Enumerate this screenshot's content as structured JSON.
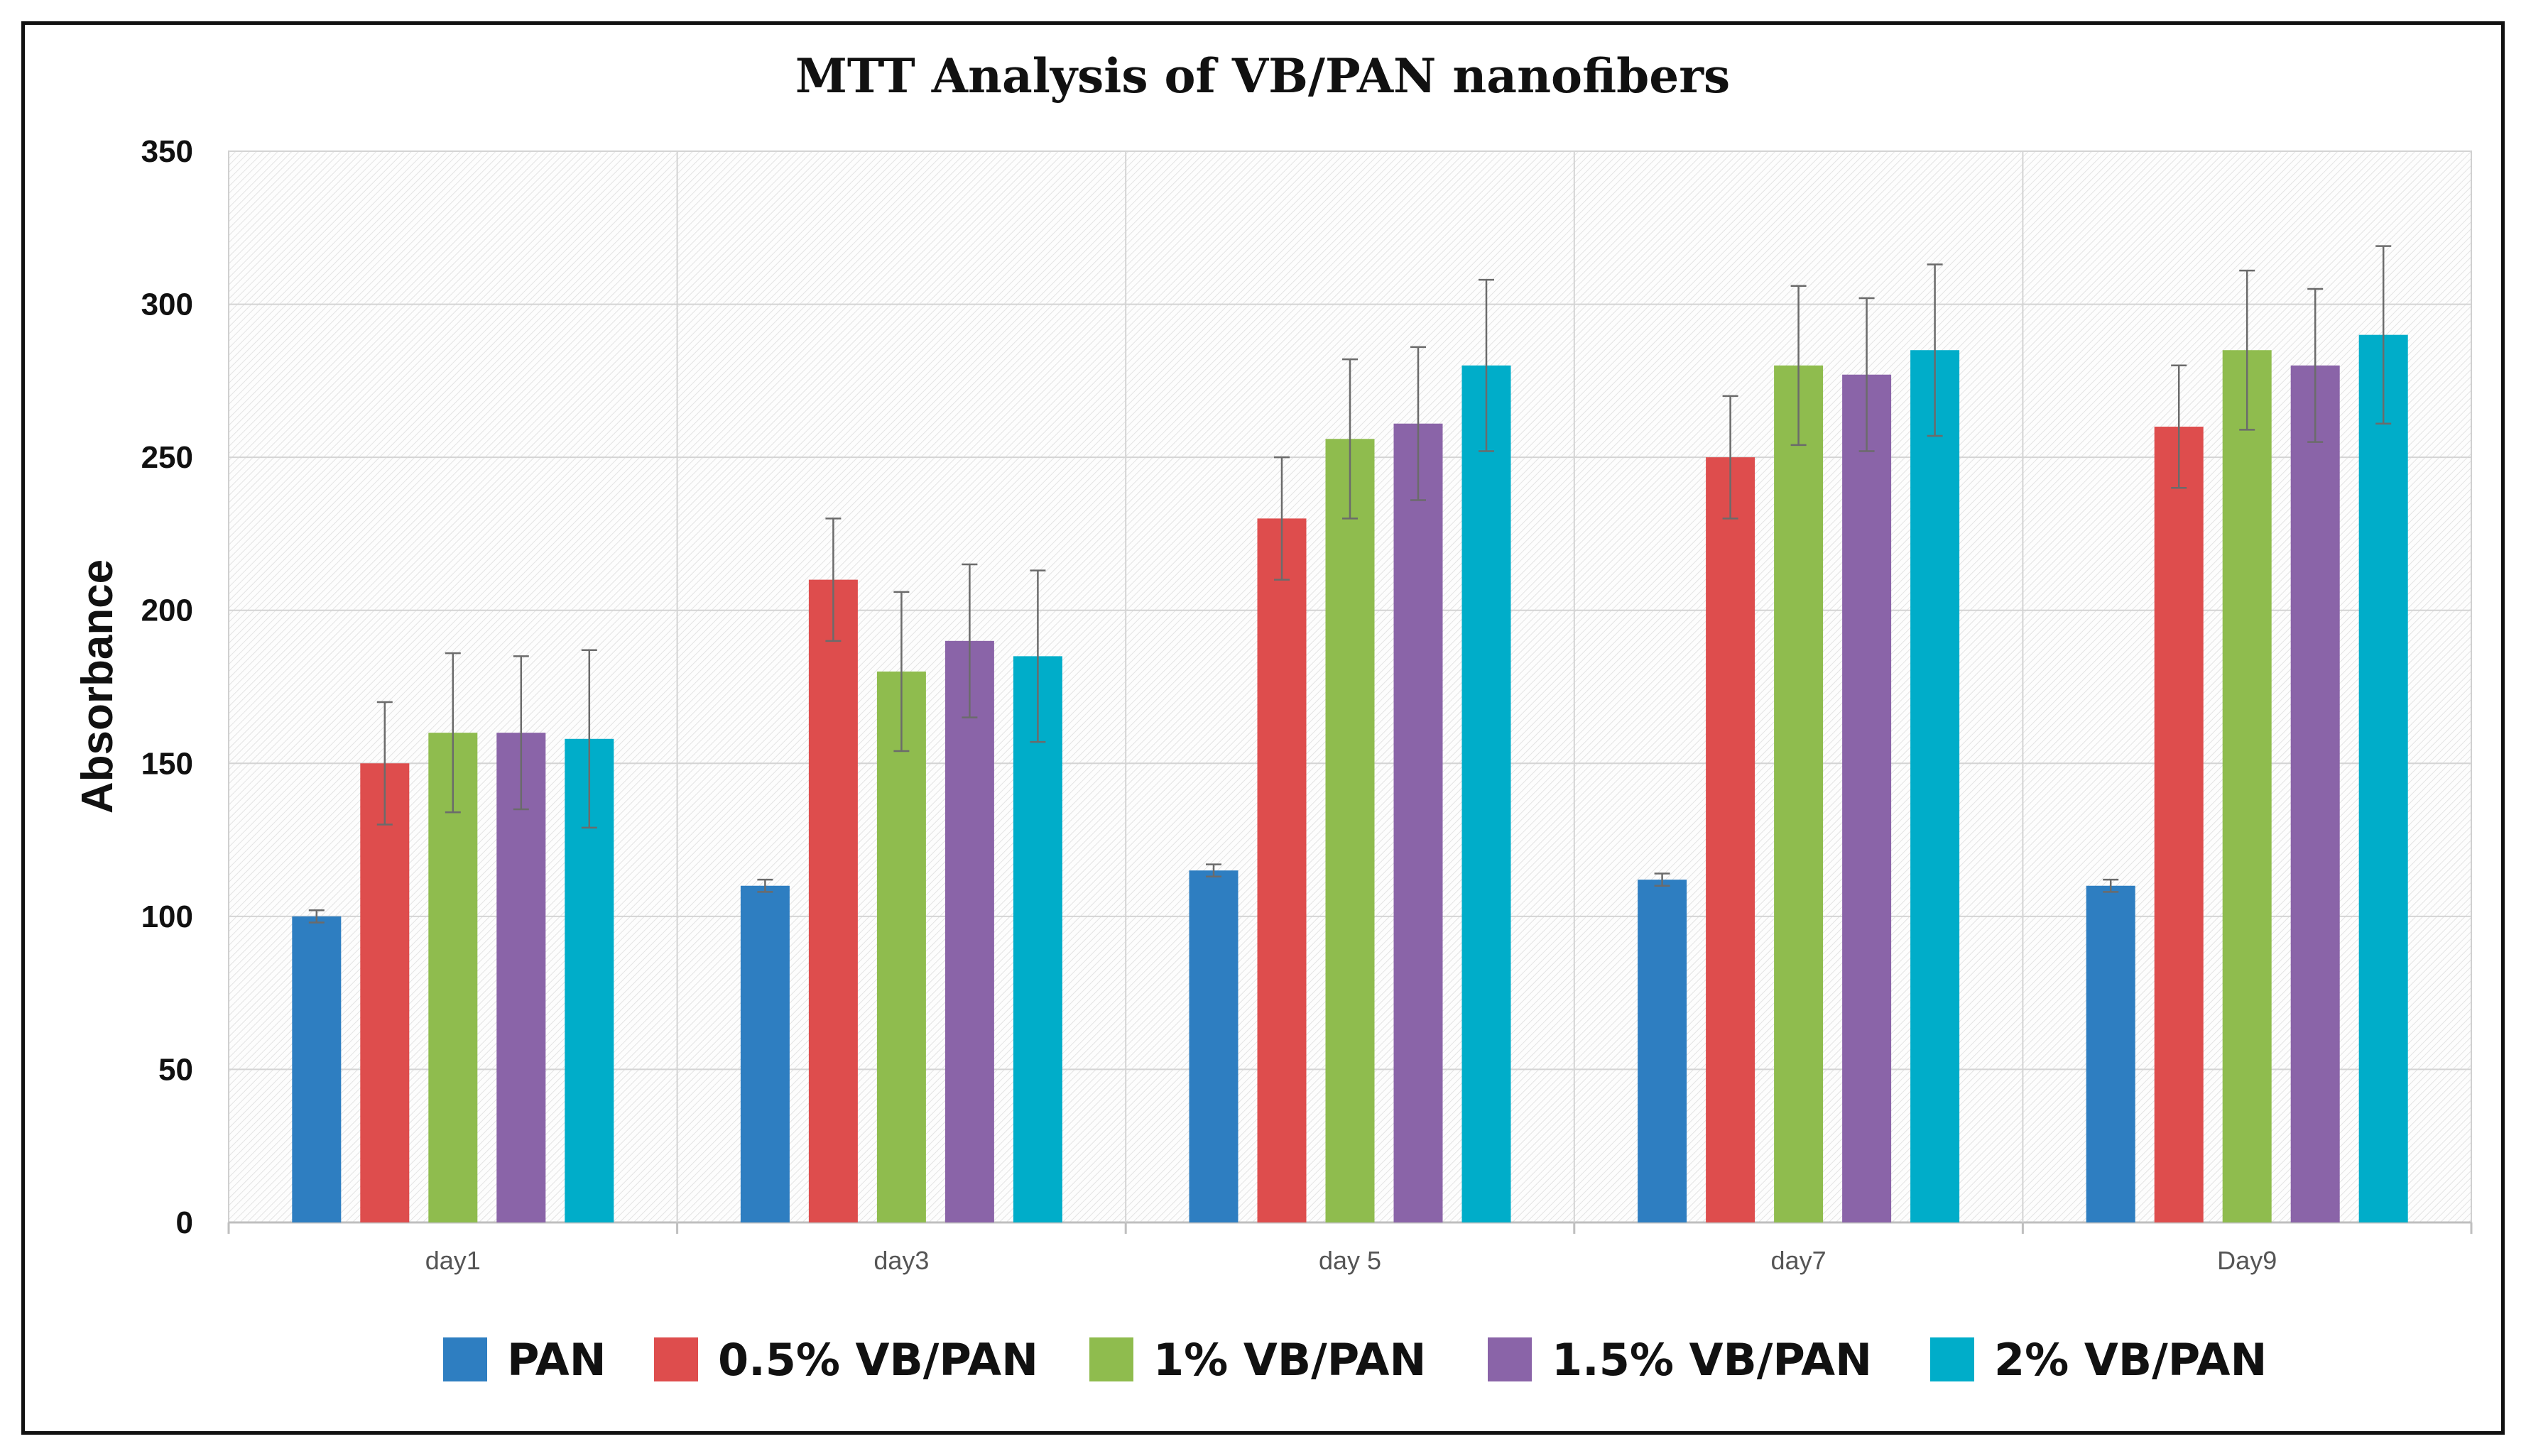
{
  "chart_data": {
    "type": "bar",
    "title": "MTT Analysis of VB/PAN nanofibers",
    "xlabel": "",
    "ylabel": "Absorbance",
    "ylim": [
      0,
      350
    ],
    "yticks": [
      0,
      50,
      100,
      150,
      200,
      250,
      300,
      350
    ],
    "grid": true,
    "legend_position": "bottom",
    "categories": [
      "day1",
      "day3",
      "day 5",
      "day7",
      "Day9"
    ],
    "series": [
      {
        "name": "PAN",
        "color": "#2E7EC1",
        "values": [
          100,
          110,
          115,
          112,
          110
        ],
        "errors": [
          2,
          2,
          2,
          2,
          2
        ]
      },
      {
        "name": "0.5% VB/PAN",
        "color": "#DE4D4D",
        "values": [
          150,
          210,
          230,
          250,
          260
        ],
        "errors": [
          20,
          20,
          20,
          20,
          20
        ]
      },
      {
        "name": "1% VB/PAN",
        "color": "#8FBC4E",
        "values": [
          160,
          180,
          256,
          280,
          285
        ],
        "errors": [
          26,
          26,
          26,
          26,
          26
        ]
      },
      {
        "name": "1.5% VB/PAN",
        "color": "#8A64A8",
        "values": [
          160,
          190,
          261,
          277,
          280
        ],
        "errors": [
          25,
          25,
          25,
          25,
          25
        ]
      },
      {
        "name": "2% VB/PAN",
        "color": "#00ADC9",
        "values": [
          158,
          185,
          280,
          285,
          290
        ],
        "errors": [
          29,
          28,
          28,
          28,
          29
        ]
      }
    ]
  }
}
